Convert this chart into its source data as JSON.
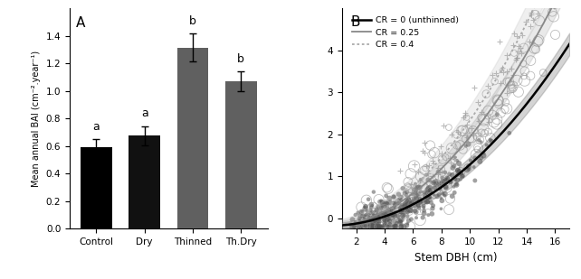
{
  "bar_categories": [
    "Control",
    "Dry",
    "Thinned",
    "Th.Dry"
  ],
  "bar_values": [
    0.595,
    0.675,
    1.315,
    1.07
  ],
  "bar_errors": [
    0.055,
    0.07,
    0.1,
    0.07
  ],
  "bar_colors": [
    "#000000",
    "#111111",
    "#606060",
    "#606060"
  ],
  "bar_labels": [
    "a",
    "a",
    "b",
    "b"
  ],
  "ylabel_A": "Mean annual BAI (cm⁻².year⁻¹)",
  "ylim_A": [
    0.0,
    1.6
  ],
  "yticks_A": [
    0.0,
    0.2,
    0.4,
    0.6,
    0.8,
    1.0,
    1.2,
    1.4
  ],
  "panel_A_label": "A",
  "panel_B_label": "B",
  "xlabel_B": "Stem DBH (cm)",
  "xlim_B": [
    1,
    17
  ],
  "ylim_B": [
    -0.25,
    5.0
  ],
  "yticks_B": [
    0,
    1,
    2,
    3,
    4
  ],
  "xticks_B": [
    2,
    4,
    6,
    8,
    10,
    12,
    14,
    16
  ],
  "cr0_color": "#000000",
  "cr025_color": "#888888",
  "cr04_color": "#aaaaaa",
  "legend_entries": [
    "CR = 0 (unthinned)",
    "CR = 0.25",
    "CR = 0.4"
  ],
  "background_color": "#ffffff",
  "scatter_dark_color": "#555555",
  "scatter_open_color": "#999999",
  "scatter_plus_color": "#999999"
}
